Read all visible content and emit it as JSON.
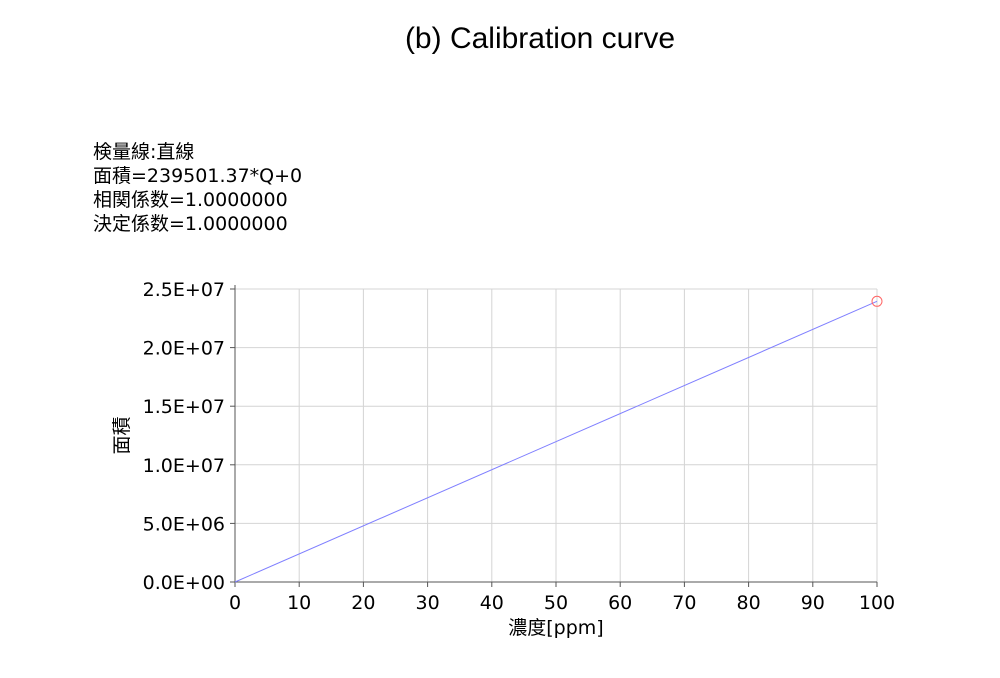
{
  "title": "(b) Calibration curve",
  "info_lines": [
    "検量線:直線",
    "面積=239501.37*Q+0",
    "相関係数=1.0000000",
    "決定係数=1.0000000"
  ],
  "colors": {
    "line": "#7f7fff",
    "point": "#ff6666",
    "grid": "#d4d4d4",
    "axis": "#555555"
  },
  "chart_data": {
    "type": "line",
    "title": "(b) Calibration curve",
    "xlabel": "濃度[ppm]",
    "ylabel": "面積",
    "xlim": [
      0,
      100
    ],
    "ylim": [
      0,
      25000000
    ],
    "x_ticks": [
      "0",
      "10",
      "20",
      "30",
      "40",
      "50",
      "60",
      "70",
      "80",
      "90",
      "100"
    ],
    "y_ticks": [
      "0.0E+00",
      "5.0E+06",
      "1.0E+07",
      "1.5E+07",
      "2.0E+07",
      "2.5E+07"
    ],
    "grid": true,
    "series": [
      {
        "x": [
          0,
          100
        ],
        "y": [
          0,
          23950137
        ]
      }
    ],
    "points": [
      {
        "x": 100,
        "y": 23950137
      }
    ]
  }
}
